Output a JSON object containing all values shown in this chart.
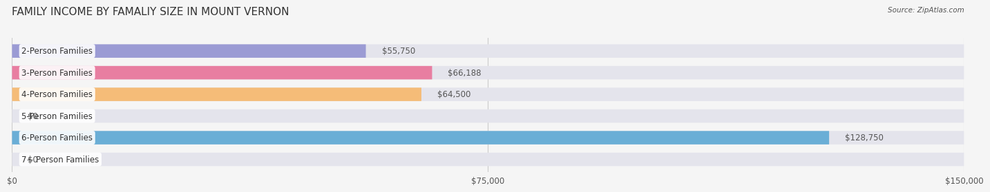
{
  "title": "FAMILY INCOME BY FAMALIY SIZE IN MOUNT VERNON",
  "source": "Source: ZipAtlas.com",
  "categories": [
    "2-Person Families",
    "3-Person Families",
    "4-Person Families",
    "5-Person Families",
    "6-Person Families",
    "7+ Person Families"
  ],
  "values": [
    55750,
    66188,
    64500,
    0,
    128750,
    0
  ],
  "bar_colors": [
    "#9b9bd4",
    "#e87ea1",
    "#f5bc78",
    "#f0a0a8",
    "#6aaed6",
    "#c8afd4"
  ],
  "bar_bg_color": "#e4e4ec",
  "xlim": [
    0,
    150000
  ],
  "xticks": [
    0,
    75000,
    150000
  ],
  "xtick_labels": [
    "$0",
    "$75,000",
    "$150,000"
  ],
  "value_labels": [
    "$55,750",
    "$66,188",
    "$64,500",
    "$0",
    "$128,750",
    "$0"
  ],
  "title_fontsize": 11,
  "label_fontsize": 8.5,
  "value_fontsize": 8.5,
  "bar_height": 0.62,
  "background_color": "#f5f5f5"
}
